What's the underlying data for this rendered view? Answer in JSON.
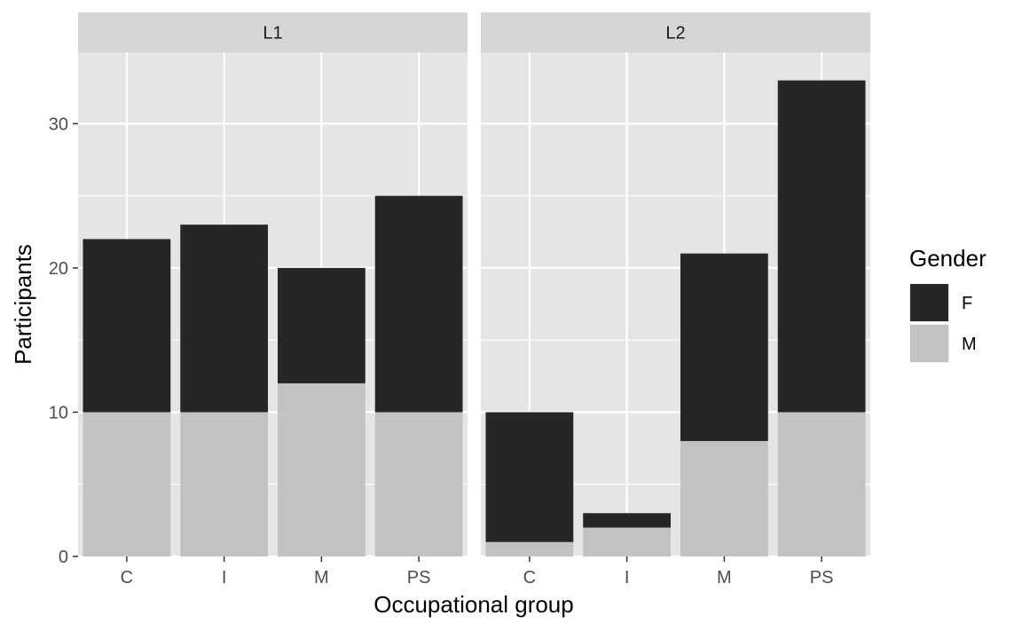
{
  "chart_data": {
    "type": "bar",
    "stacked": true,
    "facets": [
      {
        "name": "L1",
        "categories": [
          "C",
          "I",
          "M",
          "PS"
        ],
        "series": [
          {
            "name": "F",
            "values": [
              12,
              13,
              8,
              15
            ]
          },
          {
            "name": "M",
            "values": [
              10,
              10,
              12,
              10
            ]
          }
        ]
      },
      {
        "name": "L2",
        "categories": [
          "C",
          "I",
          "M",
          "PS"
        ],
        "series": [
          {
            "name": "F",
            "values": [
              9,
              1,
              13,
              23
            ]
          },
          {
            "name": "M",
            "values": [
              1,
              2,
              8,
              10
            ]
          }
        ]
      }
    ],
    "xlabel": "Occupational group",
    "ylabel": "Participants",
    "ylim": [
      0,
      35
    ],
    "yticks": [
      0,
      10,
      20,
      30
    ],
    "grid": true,
    "legend": {
      "title": "Gender",
      "position": "right",
      "entries": [
        "F",
        "M"
      ]
    },
    "colors": {
      "F": "#262626",
      "M": "#c2c2c2",
      "panel": "#e5e5e5",
      "strip": "#d6d6d6",
      "grid": "#ffffff"
    }
  }
}
